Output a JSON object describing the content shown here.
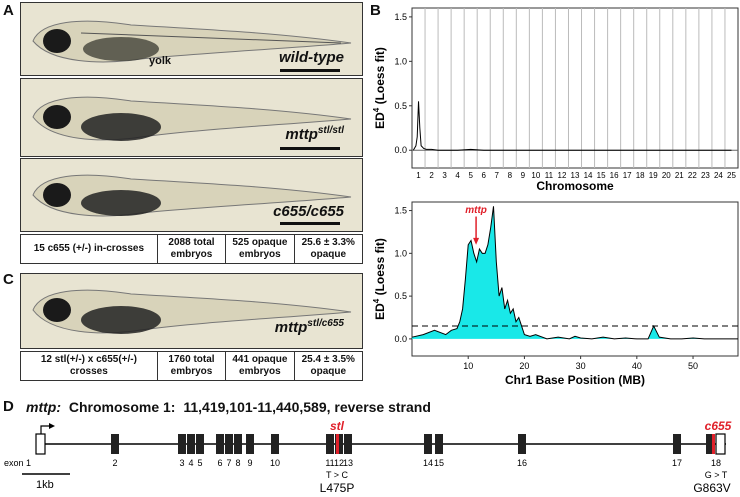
{
  "panels": {
    "A": "A",
    "B": "B",
    "C": "C",
    "D": "D"
  },
  "panel_a": {
    "fish": [
      {
        "genotype": "wild-type",
        "sup": ""
      },
      {
        "genotype": "mttp",
        "sup": "stl/stl"
      },
      {
        "genotype": "c655/c655",
        "sup": ""
      }
    ],
    "yolk_label": "yolk",
    "stats": [
      "15 c655 (+/-) in-crosses",
      "2088 total embryos",
      "525 opaque embryos",
      "25.6 ± 3.3% opaque"
    ]
  },
  "panel_c": {
    "genotype": "mttp",
    "sup": "stl/c655",
    "stats": [
      "12 stl(+/-) x c655(+/-) crosses",
      "1760 total embryos",
      "441 opaque embryos",
      "25.4 ± 3.5% opaque"
    ]
  },
  "chart_data": [
    {
      "type": "line",
      "title": "",
      "xlabel": "Chromosome",
      "ylabel": "ED4 (Loess fit)",
      "ylabel_base": "ED",
      "ylabel_sup": "4",
      "ylabel_rest": " (Loess fit)",
      "categories": [
        "1",
        "2",
        "3",
        "4",
        "5",
        "6",
        "7",
        "8",
        "9",
        "10",
        "11",
        "12",
        "13",
        "14",
        "15",
        "16",
        "17",
        "18",
        "19",
        "20",
        "21",
        "22",
        "23",
        "24",
        "25"
      ],
      "yticks": [
        "0.0",
        "0.5",
        "1.0",
        "1.5"
      ],
      "ylim": [
        -0.2,
        1.6
      ],
      "series": [
        {
          "x": [
            0.6,
            0.8,
            0.9,
            1.0,
            1.1,
            1.2,
            1.4,
            1.6,
            2.0,
            2.5,
            3.0,
            4.0,
            5.0,
            6.0,
            8.0,
            12.0,
            20.0,
            25.0
          ],
          "y": [
            0.0,
            0.05,
            0.15,
            0.55,
            0.25,
            0.05,
            0.02,
            0.01,
            0.01,
            0.0,
            0.0,
            0.0,
            0.01,
            0.0,
            0.0,
            0.0,
            0.0,
            0.0
          ]
        }
      ]
    },
    {
      "type": "area",
      "title": "",
      "xlabel": "Chr1 Base Position (MB)",
      "ylabel": "ED4 (Loess fit)",
      "ylabel_base": "ED",
      "ylabel_sup": "4",
      "ylabel_rest": " (Loess fit)",
      "xticks": [
        "10",
        "20",
        "30",
        "40",
        "50"
      ],
      "yticks": [
        "0.0",
        "0.5",
        "1.0",
        "1.5"
      ],
      "xlim": [
        0,
        58
      ],
      "ylim": [
        -0.2,
        1.6
      ],
      "threshold": 0.15,
      "annotation": {
        "label": "mttp",
        "x": 11.4
      },
      "series": [
        {
          "x": [
            0,
            2,
            4,
            6,
            7,
            8,
            8.5,
            9,
            9.5,
            10,
            10.5,
            11,
            11.5,
            12,
            12.5,
            13,
            13.5,
            14,
            14.5,
            15,
            15.5,
            16,
            16.5,
            17,
            17.5,
            18,
            18.5,
            19,
            19.5,
            20,
            21,
            22,
            24,
            26,
            28,
            29,
            30,
            32,
            34,
            36,
            38,
            40,
            42,
            43,
            44,
            46,
            48,
            50,
            52,
            54,
            56,
            58
          ],
          "y": [
            0.02,
            0.05,
            0.1,
            0.05,
            0.1,
            0.12,
            0.2,
            0.35,
            0.7,
            1.1,
            1.15,
            1.0,
            0.9,
            1.05,
            1.0,
            1.0,
            1.1,
            1.3,
            1.55,
            0.9,
            0.5,
            0.6,
            0.35,
            0.45,
            0.3,
            0.35,
            0.2,
            0.25,
            0.15,
            0.05,
            0.03,
            0.05,
            0.0,
            0.02,
            0.0,
            0.03,
            0.01,
            0.0,
            0.02,
            0.0,
            0.01,
            0.0,
            0.0,
            0.15,
            0.02,
            0.0,
            0.0,
            0.01,
            0.0,
            0.0,
            0.0,
            0.0
          ]
        }
      ]
    }
  ],
  "panel_d": {
    "gene": "mttp:",
    "location": "Chromosome 1:",
    "coords": "11,419,101-11,440,589, reverse strand",
    "exons": [
      {
        "label": "exon 1"
      },
      {
        "label": "2"
      },
      {
        "label": "3"
      },
      {
        "label": "4"
      },
      {
        "label": "5"
      },
      {
        "label": "6"
      },
      {
        "label": "7"
      },
      {
        "label": "8"
      },
      {
        "label": "9"
      },
      {
        "label": "10"
      },
      {
        "label": "11"
      },
      {
        "label": "12"
      },
      {
        "label": "13"
      },
      {
        "label": "14"
      },
      {
        "label": "15"
      },
      {
        "label": "16"
      },
      {
        "label": "17"
      },
      {
        "label": "18"
      }
    ],
    "mut1": {
      "name": "stl",
      "change": "T > C",
      "aa": "L475P"
    },
    "mut2": {
      "name": "c655",
      "change": "G > T",
      "aa": "G863V"
    },
    "scale": "1kb",
    "colors": {
      "mutation": "#e0202a",
      "fill": "#00e5e5"
    }
  }
}
